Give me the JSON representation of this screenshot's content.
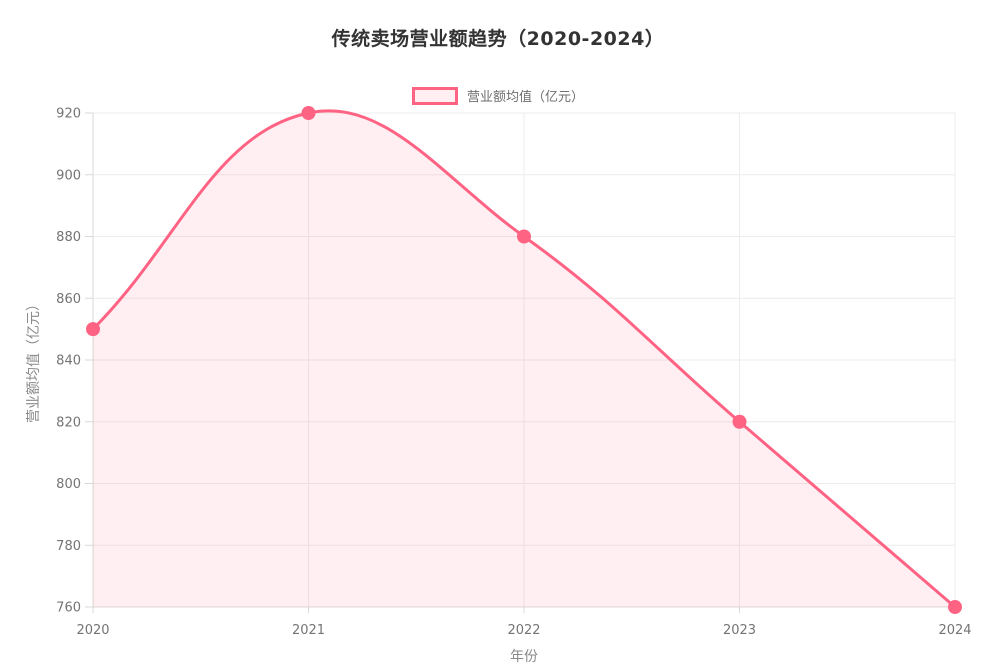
{
  "chart_data": {
    "type": "area",
    "title": "传统卖场营业额趋势（2020-2024）",
    "xlabel": "年份",
    "ylabel": "营业额均值（亿元）",
    "legend": {
      "label": "营业额均值（亿元）",
      "position": "top"
    },
    "categories": [
      "2020",
      "2021",
      "2022",
      "2023",
      "2024"
    ],
    "series": [
      {
        "name": "营业额均值（亿元）",
        "values": [
          850,
          920,
          880,
          820,
          760
        ]
      }
    ],
    "ylim": [
      760,
      920
    ],
    "ytick_step": 20,
    "yticks": [
      760,
      780,
      800,
      820,
      840,
      860,
      880,
      900,
      920
    ],
    "grid": true,
    "smooth": true,
    "point_radius": 7,
    "line_width": 3,
    "colors": {
      "line": "#FF6384",
      "point": "#FF6384",
      "fill": "rgba(255, 99, 132, 0.10)",
      "grid": "#ececec",
      "axis": "#d9d9d9",
      "tick_text": "#747474",
      "axis_title_text": "#8a8a8a",
      "title_text": "#333333",
      "legend_text": "#6e6e6e"
    }
  }
}
